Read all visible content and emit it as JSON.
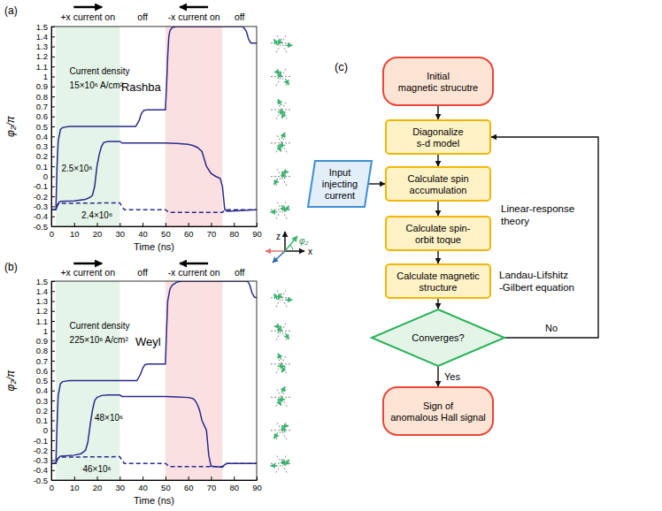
{
  "chart_data": [
    {
      "type": "line",
      "panel_label": "(a)",
      "title": "Rashba",
      "x_label": "Time (ns)",
      "y_label": "φ₂/π",
      "xlim": [
        0,
        90
      ],
      "ylim": [
        -0.5,
        1.5
      ],
      "xticks": [
        0,
        10,
        20,
        30,
        40,
        50,
        60,
        70,
        80,
        90
      ],
      "yticks": [
        -0.5,
        -0.4,
        -0.3,
        -0.2,
        -0.1,
        0,
        0.1,
        0.2,
        0.3,
        0.4,
        0.5,
        0.6,
        0.7,
        0.8,
        0.9,
        1,
        1.1,
        1.2,
        1.3,
        1.4,
        1.5
      ],
      "grid": false,
      "annotations": [
        "Current density"
      ],
      "phases": [
        {
          "label": "+x current on",
          "start": 2,
          "end": 30,
          "current": 1,
          "color": "#e4f4e8"
        },
        {
          "label": "off",
          "start": 30,
          "end": 50,
          "current": 0,
          "color": null
        },
        {
          "label": "-x current on",
          "start": 50,
          "end": 75,
          "current": -1,
          "color": "#fbe0e2"
        },
        {
          "label": "off",
          "start": 75,
          "end": 90,
          "current": 0,
          "color": null
        }
      ],
      "configurations": [
        1.3333,
        1,
        0.6667,
        0.3333,
        0,
        -0.3333
      ],
      "series": [
        {
          "name": "15×10⁶ A/cm²",
          "color": "#2a2a8c",
          "line_style": "solid",
          "x": [
            0,
            2,
            2.5,
            3,
            4,
            5,
            8,
            30,
            37,
            38.5,
            39.5,
            40.5,
            42,
            50,
            50.5,
            51,
            51.5,
            52,
            53,
            55,
            75,
            84,
            85.5,
            86.5,
            87.5,
            90
          ],
          "values": [
            -0.333,
            -0.333,
            0.1,
            0.35,
            0.47,
            0.49,
            0.5,
            0.5,
            0.5,
            0.56,
            0.63,
            0.66,
            0.667,
            0.667,
            0.9,
            1.2,
            1.4,
            1.46,
            1.49,
            1.5,
            1.5,
            1.5,
            1.45,
            1.37,
            1.335,
            1.333
          ]
        },
        {
          "name": "2.5×10⁶",
          "color": "#2a2a8c",
          "line_style": "solid",
          "x": [
            0,
            2,
            2.5,
            3,
            4,
            10,
            15,
            17,
            18,
            19,
            20,
            21,
            22,
            23,
            25,
            30,
            31,
            50,
            55,
            60,
            62,
            64,
            66,
            68,
            70,
            72,
            74,
            75,
            76,
            77,
            90
          ],
          "values": [
            -0.333,
            -0.333,
            -0.3,
            -0.27,
            -0.25,
            -0.245,
            -0.23,
            -0.21,
            -0.19,
            -0.1,
            0.1,
            0.22,
            0.3,
            0.34,
            0.35,
            0.35,
            0.333,
            0.333,
            0.33,
            0.32,
            0.31,
            0.29,
            0.25,
            0.1,
            0.03,
            0,
            -0.02,
            -0.1,
            -0.33,
            -0.35,
            -0.333
          ]
        },
        {
          "name": "2.4×10⁶",
          "color": "#2a2a8c",
          "line_style": "dashed",
          "x": [
            0,
            2,
            2.5,
            3,
            4,
            30,
            31,
            32,
            50,
            51,
            52,
            75,
            76,
            77,
            90
          ],
          "values": [
            -0.333,
            -0.333,
            -0.3,
            -0.28,
            -0.27,
            -0.265,
            -0.3,
            -0.333,
            -0.333,
            -0.35,
            -0.36,
            -0.36,
            -0.34,
            -0.333,
            -0.333
          ]
        }
      ]
    },
    {
      "type": "line",
      "panel_label": "(b)",
      "title": "Weyl",
      "x_label": "Time (ns)",
      "y_label": "φ₂/π",
      "xlim": [
        0,
        90
      ],
      "ylim": [
        -0.5,
        1.5
      ],
      "xticks": [
        0,
        10,
        20,
        30,
        40,
        50,
        60,
        70,
        80,
        90
      ],
      "yticks": [
        -0.5,
        -0.4,
        -0.3,
        -0.2,
        -0.1,
        0,
        0.1,
        0.2,
        0.3,
        0.4,
        0.5,
        0.6,
        0.7,
        0.8,
        0.9,
        1,
        1.1,
        1.2,
        1.3,
        1.4,
        1.5
      ],
      "grid": false,
      "annotations": [
        "Current density"
      ],
      "phases": [
        {
          "label": "+x current on",
          "start": 2,
          "end": 30,
          "current": 1,
          "color": "#e4f4e8"
        },
        {
          "label": "off",
          "start": 30,
          "end": 50,
          "current": 0,
          "color": null
        },
        {
          "label": "-x current on",
          "start": 50,
          "end": 75,
          "current": -1,
          "color": "#fbe0e2"
        },
        {
          "label": "off",
          "start": 75,
          "end": 90,
          "current": 0,
          "color": null
        }
      ],
      "configurations": [
        1.3333,
        1,
        0.6667,
        0.3333,
        0,
        -0.3333
      ],
      "series": [
        {
          "name": "225×10⁶ A/cm²",
          "color": "#2a2a8c",
          "line_style": "solid",
          "x": [
            0,
            2,
            2.5,
            3,
            4,
            5,
            8,
            30,
            37.5,
            39,
            40,
            41,
            42.5,
            50,
            50.5,
            51,
            52,
            53,
            55,
            57,
            75,
            86,
            87,
            88,
            89,
            90
          ],
          "values": [
            -0.333,
            -0.333,
            0.05,
            0.35,
            0.47,
            0.49,
            0.5,
            0.5,
            0.5,
            0.56,
            0.62,
            0.66,
            0.667,
            0.667,
            1,
            1.3,
            1.42,
            1.46,
            1.49,
            1.5,
            1.5,
            1.5,
            1.46,
            1.38,
            1.34,
            1.333
          ]
        },
        {
          "name": "48×10⁶",
          "color": "#2a2a8c",
          "line_style": "solid",
          "x": [
            0,
            2,
            2.5,
            3,
            4,
            10,
            13,
            15,
            16,
            17,
            18,
            19,
            20,
            22,
            25,
            30,
            31,
            50,
            55,
            60,
            62,
            63,
            64,
            65,
            66,
            67,
            68,
            69,
            70,
            75,
            76,
            77,
            90
          ],
          "values": [
            -0.333,
            -0.333,
            -0.3,
            -0.28,
            -0.26,
            -0.25,
            -0.235,
            -0.2,
            -0.12,
            0.05,
            0.2,
            0.3,
            0.33,
            0.35,
            0.355,
            0.355,
            0.34,
            0.34,
            0.335,
            0.33,
            0.32,
            0.3,
            0.26,
            0.2,
            0.1,
            0.05,
            0,
            -0.25,
            -0.36,
            -0.37,
            -0.345,
            -0.333,
            -0.333
          ]
        },
        {
          "name": "46×10⁶",
          "color": "#2a2a8c",
          "line_style": "dashed",
          "x": [
            0,
            2,
            2.5,
            3,
            4,
            30,
            31,
            32,
            50,
            51,
            52,
            75,
            76,
            77,
            90
          ],
          "values": [
            -0.333,
            -0.333,
            -0.3,
            -0.28,
            -0.27,
            -0.265,
            -0.3,
            -0.333,
            -0.333,
            -0.35,
            -0.365,
            -0.365,
            -0.345,
            -0.333,
            -0.333
          ]
        }
      ]
    }
  ],
  "inset": {
    "z_label": "z",
    "x_label": "x",
    "angle_label": "φ₂"
  },
  "flowchart": {
    "panel_label": "(c)",
    "nodes": [
      {
        "shape": "terminal",
        "lines": [
          "Initial",
          "magnetic strucutre"
        ]
      },
      {
        "shape": "process",
        "lines": [
          "Diagonalize",
          "s-d model"
        ]
      },
      {
        "shape": "process",
        "lines": [
          "Calculate spin",
          "accumulation"
        ]
      },
      {
        "shape": "process",
        "lines": [
          "Calculate spin-",
          "orbit toque"
        ]
      },
      {
        "shape": "process",
        "lines": [
          "Calculate magnetic",
          "structure"
        ]
      },
      {
        "shape": "decision",
        "lines": [
          "Converges?"
        ]
      },
      {
        "shape": "terminal",
        "lines": [
          "Sign of",
          "anomalous Hall signal"
        ]
      },
      {
        "shape": "input",
        "lines": [
          "Input",
          "injecting",
          "current"
        ]
      }
    ],
    "edges": [
      {
        "from": 0,
        "to": 1
      },
      {
        "from": 1,
        "to": 2
      },
      {
        "from": 7,
        "to": 2
      },
      {
        "from": 2,
        "to": 3
      },
      {
        "from": 3,
        "to": 4
      },
      {
        "from": 4,
        "to": 5
      },
      {
        "from": 5,
        "to": 6,
        "label": "Yes"
      },
      {
        "from": 5,
        "to": 1,
        "label": "No"
      }
    ],
    "notes": [
      {
        "lines": [
          "Linear-response",
          "theory"
        ]
      },
      {
        "lines": [
          "Landau-Lifshitz",
          "-Gilbert equation"
        ]
      }
    ]
  }
}
